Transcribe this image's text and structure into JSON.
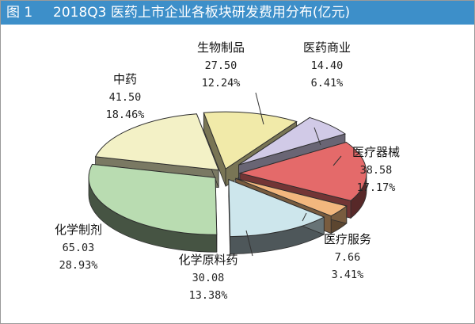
{
  "figure": {
    "label": "图 1",
    "title": "2018Q3 医药上市企业各板块研发费用分布(亿元)",
    "title_bar_color": "#3d8fc9"
  },
  "chart_data": {
    "type": "pie",
    "title": "2018Q3 医药上市企业各板块研发费用分布(亿元)",
    "unit": "亿元",
    "slices": [
      {
        "name": "生物制品",
        "value": "27.50",
        "percent": "12.24%",
        "color": "#f1eaa9"
      },
      {
        "name": "医药商业",
        "value": "14.40",
        "percent": "6.41%",
        "color": "#d1cae7"
      },
      {
        "name": "医疗器械",
        "value": "38.58",
        "percent": "17.17%",
        "color": "#e46a6a"
      },
      {
        "name": "医疗服务",
        "value": "7.66",
        "percent": "3.41%",
        "color": "#f2b77e"
      },
      {
        "name": "化学原料药",
        "value": "30.08",
        "percent": "13.38%",
        "color": "#cde6ec"
      },
      {
        "name": "化学制剂",
        "value": "65.03",
        "percent": "28.93%",
        "color": "#b9dcb1"
      },
      {
        "name": "中药",
        "value": "41.50",
        "percent": "18.46%",
        "color": "#f3f1c6"
      }
    ]
  }
}
